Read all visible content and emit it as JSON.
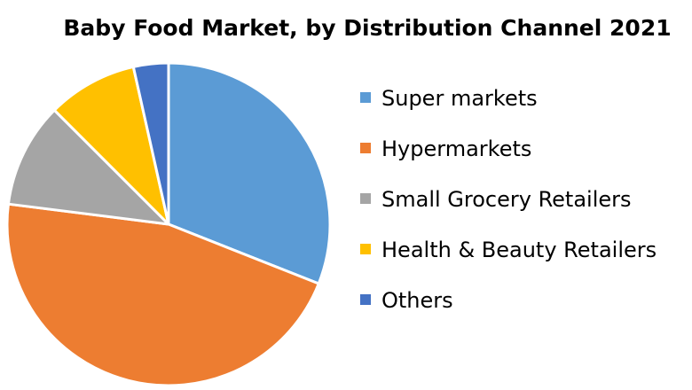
{
  "chart_data": {
    "type": "pie",
    "title": "Baby Food Market, by Distribution Channel 2021",
    "legend_position": "right",
    "start_angle_deg": 0,
    "direction": "clockwise",
    "slices": [
      {
        "label": "Super markets",
        "value": 31,
        "color": "#5B9BD5"
      },
      {
        "label": "Hypermarkets",
        "value": 46,
        "color": "#ED7D31"
      },
      {
        "label": "Small Grocery Retailers",
        "value": 10.5,
        "color": "#A5A5A5"
      },
      {
        "label": "Health & Beauty Retailers",
        "value": 9,
        "color": "#FFC000"
      },
      {
        "label": "Others",
        "value": 3.5,
        "color": "#4472C4"
      }
    ]
  }
}
